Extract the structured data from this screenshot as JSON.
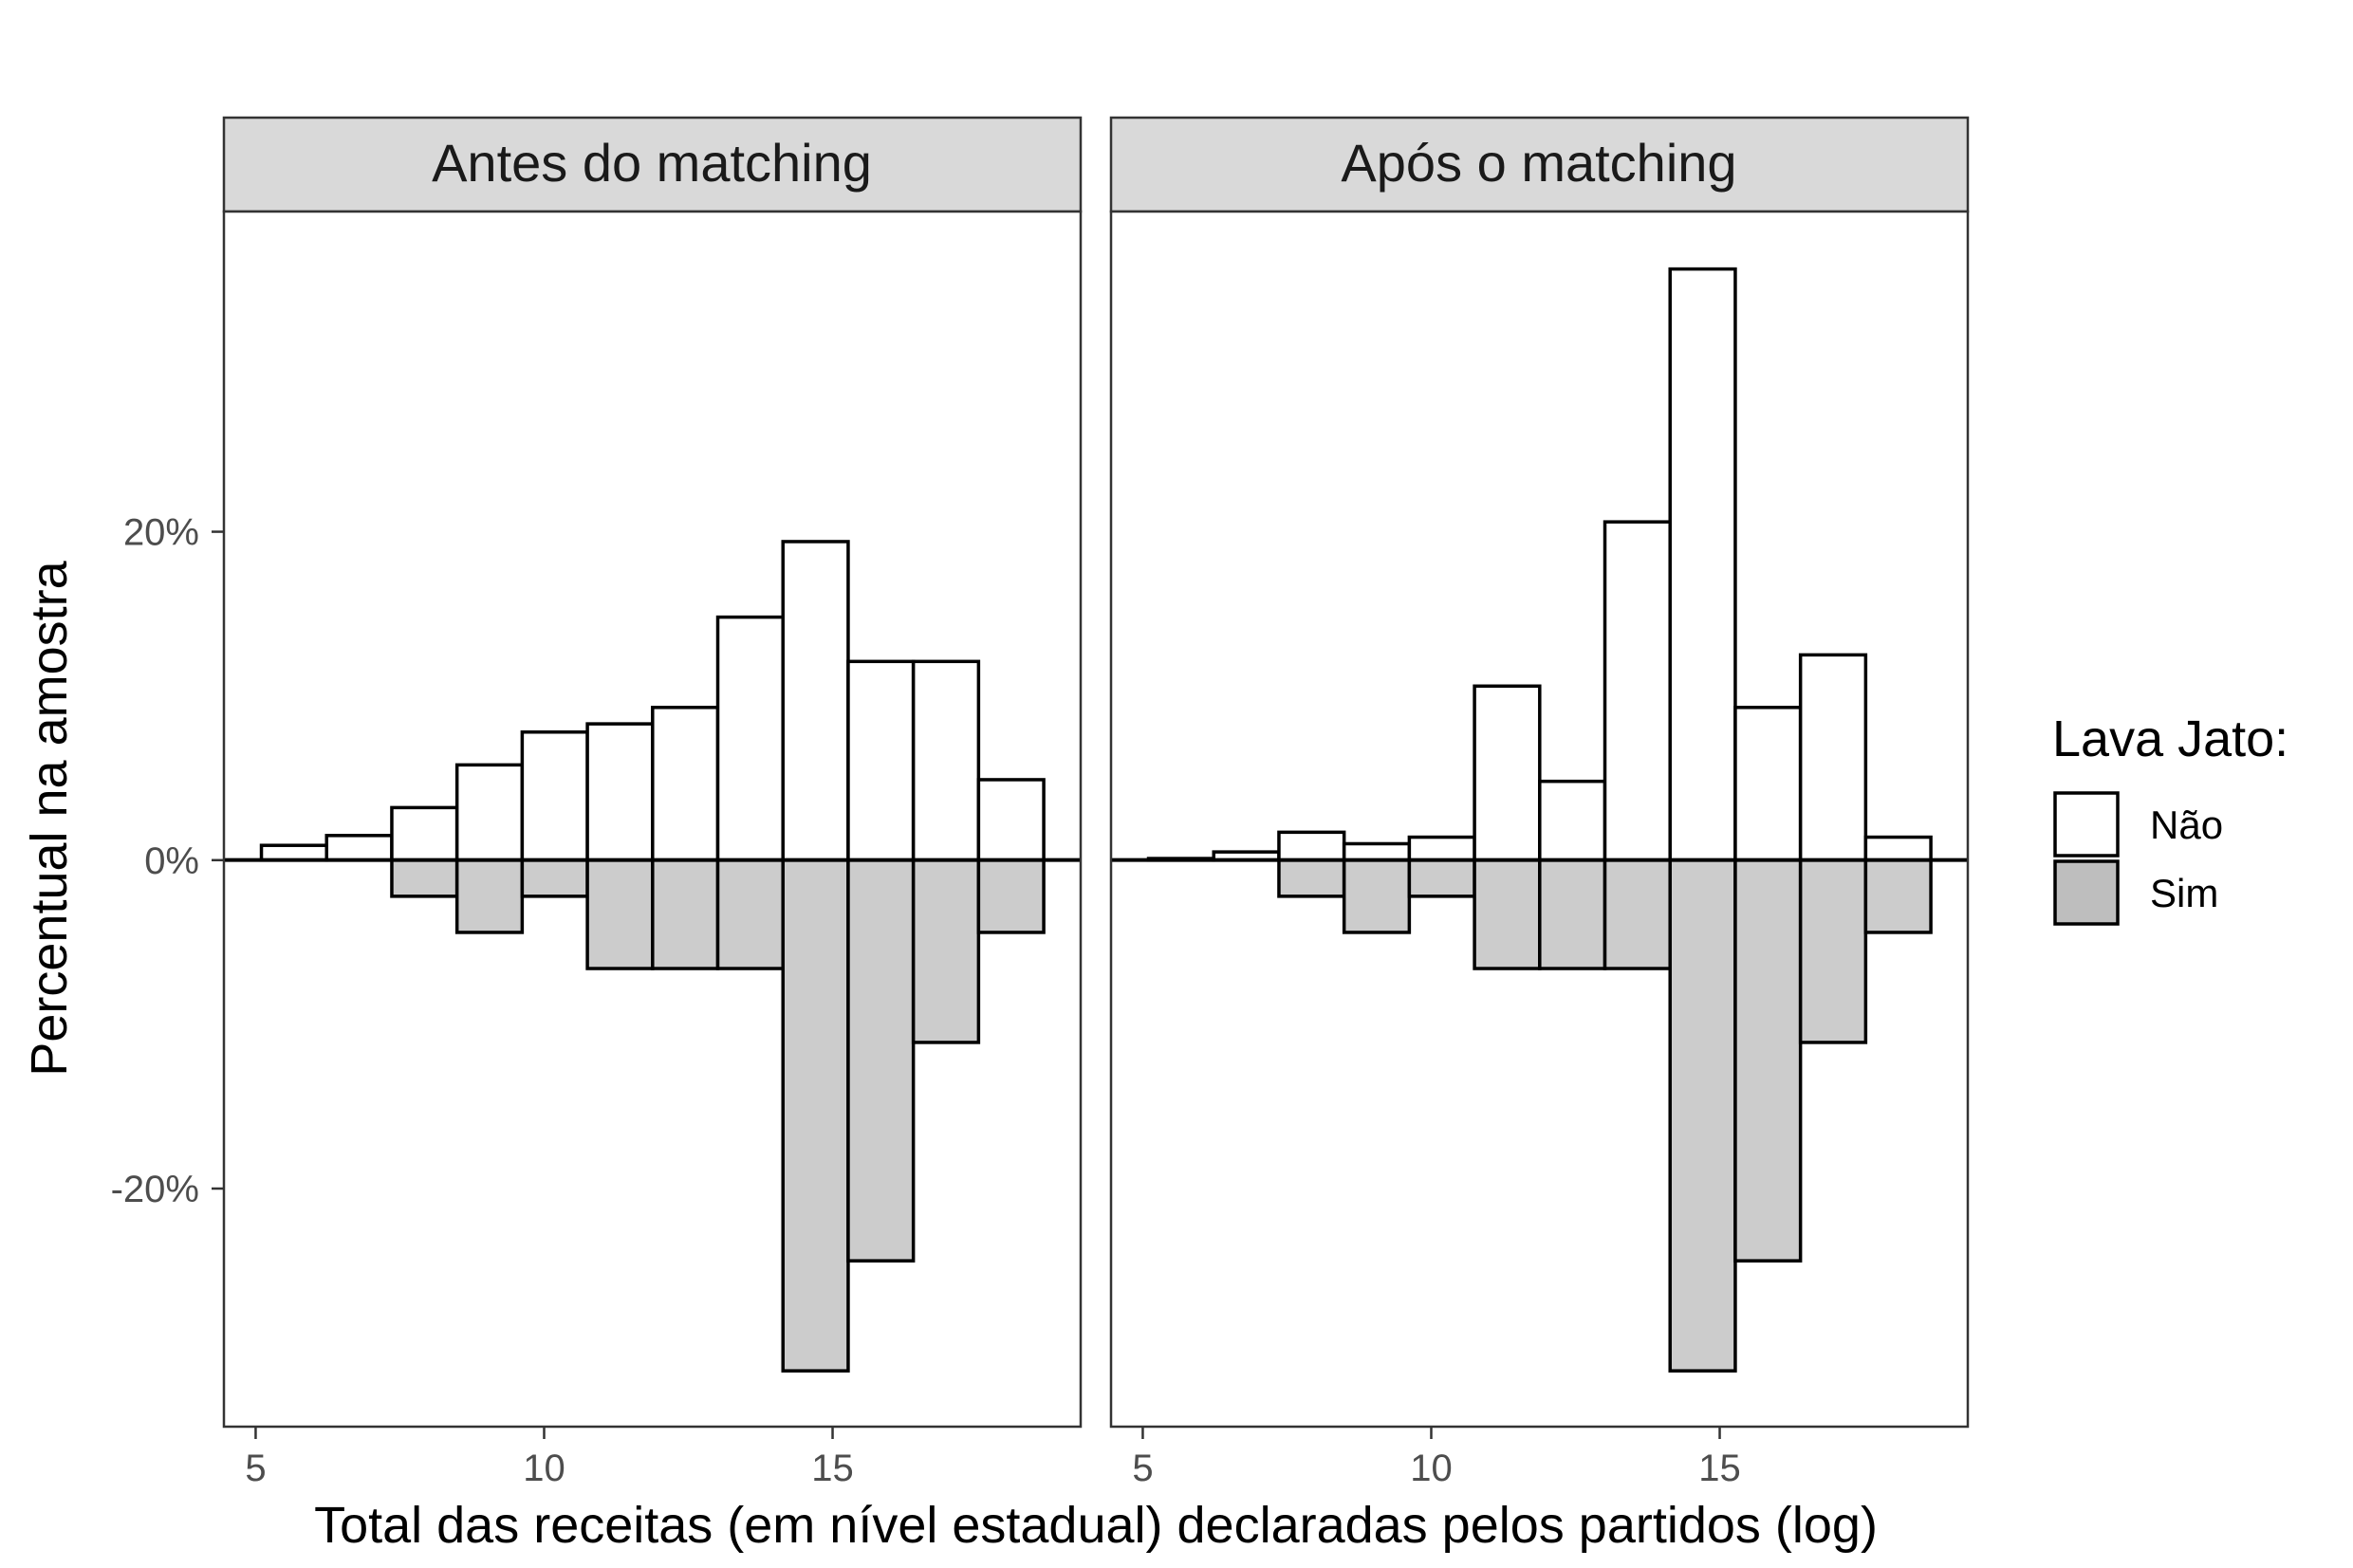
{
  "chart_data": {
    "type": "bar",
    "subtype": "mirrored histogram, faceted",
    "xlabel": "Total das receitas (em nível estadual) declaradas pelos partidos (log)",
    "ylabel": "Percentual na amostra",
    "x_ticks": [
      5,
      10,
      15
    ],
    "y_ticks": [
      -20,
      0,
      20
    ],
    "y_tick_labels": [
      "-20%",
      "0%",
      "20%"
    ],
    "xlim": [
      4.45,
      19.3
    ],
    "ylim": [
      -34.5,
      39.5
    ],
    "bin_edges": [
      5.1,
      6.23,
      7.36,
      8.49,
      9.62,
      10.75,
      11.88,
      13.01,
      14.14,
      15.27,
      16.4,
      17.53,
      18.66
    ],
    "legend": {
      "title": "Lava Jato:",
      "position": "right",
      "entries": [
        {
          "label": "Não",
          "color": "#ffffff"
        },
        {
          "label": "Sim",
          "color": "#bebebe"
        }
      ]
    },
    "colors": {
      "nao": "#ffffff",
      "sim": "#cccccc",
      "outline": "#000000",
      "strip": "#d9d9d9"
    },
    "facets": [
      {
        "title": "Antes do matching",
        "series": [
          {
            "name": "Não",
            "values": [
              0.9,
              1.5,
              3.2,
              5.8,
              7.8,
              8.3,
              9.3,
              14.8,
              19.4,
              12.1,
              12.1,
              4.9
            ]
          },
          {
            "name": "Sim",
            "values": [
              0,
              0,
              -2.2,
              -4.4,
              -2.2,
              -6.6,
              -6.6,
              -6.6,
              -31.1,
              -24.4,
              -11.1,
              -4.4
            ]
          }
        ]
      },
      {
        "title": "Após o matching",
        "series": [
          {
            "name": "Não",
            "values": [
              0.1,
              0.5,
              1.7,
              1.0,
              1.4,
              10.6,
              4.8,
              20.6,
              36.0,
              9.3,
              12.5,
              1.4
            ]
          },
          {
            "name": "Sim",
            "values": [
              0,
              0,
              -2.2,
              -4.4,
              -2.2,
              -6.6,
              -6.6,
              -6.6,
              -31.1,
              -24.4,
              -11.1,
              -4.4
            ]
          }
        ]
      }
    ]
  }
}
